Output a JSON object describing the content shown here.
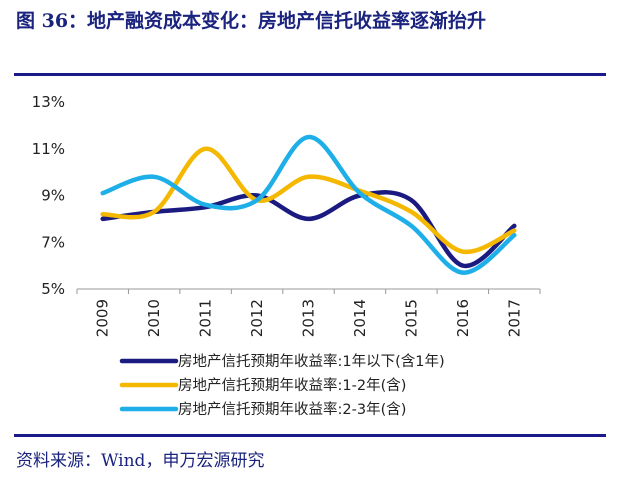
{
  "header": {
    "title": "图 36：地产融资成本变化：房地产信托收益率逐渐抬升"
  },
  "footer": {
    "source": "资料来源：Wind，申万宏源研究"
  },
  "chart_data": {
    "type": "line",
    "title": "",
    "xlabel": "",
    "ylabel": "",
    "categories": [
      "2009",
      "2010",
      "2011",
      "2012",
      "2013",
      "2014",
      "2015",
      "2016",
      "2017"
    ],
    "ylim": [
      5,
      13
    ],
    "yticks": [
      5,
      7,
      9,
      11,
      13
    ],
    "ytick_labels": [
      "5%",
      "7%",
      "9%",
      "11%",
      "13%"
    ],
    "grid": false,
    "legend_position": "bottom",
    "series": [
      {
        "name": "房地产信托预期年收益率:1年以下(含1年)",
        "color": "#1a1a80",
        "values": [
          8.0,
          8.3,
          8.5,
          9.0,
          8.0,
          9.0,
          8.8,
          6.0,
          7.7
        ]
      },
      {
        "name": "房地产信托预期年收益率:1-2年(含)",
        "color": "#f5b800",
        "values": [
          8.2,
          8.3,
          11.0,
          8.8,
          9.8,
          9.2,
          8.3,
          6.6,
          7.5
        ]
      },
      {
        "name": "房地产信托预期年收益率:2-3年(含)",
        "color": "#1eaee8",
        "values": [
          9.1,
          9.8,
          8.6,
          8.8,
          11.5,
          9.1,
          7.7,
          5.7,
          7.3
        ]
      }
    ]
  }
}
